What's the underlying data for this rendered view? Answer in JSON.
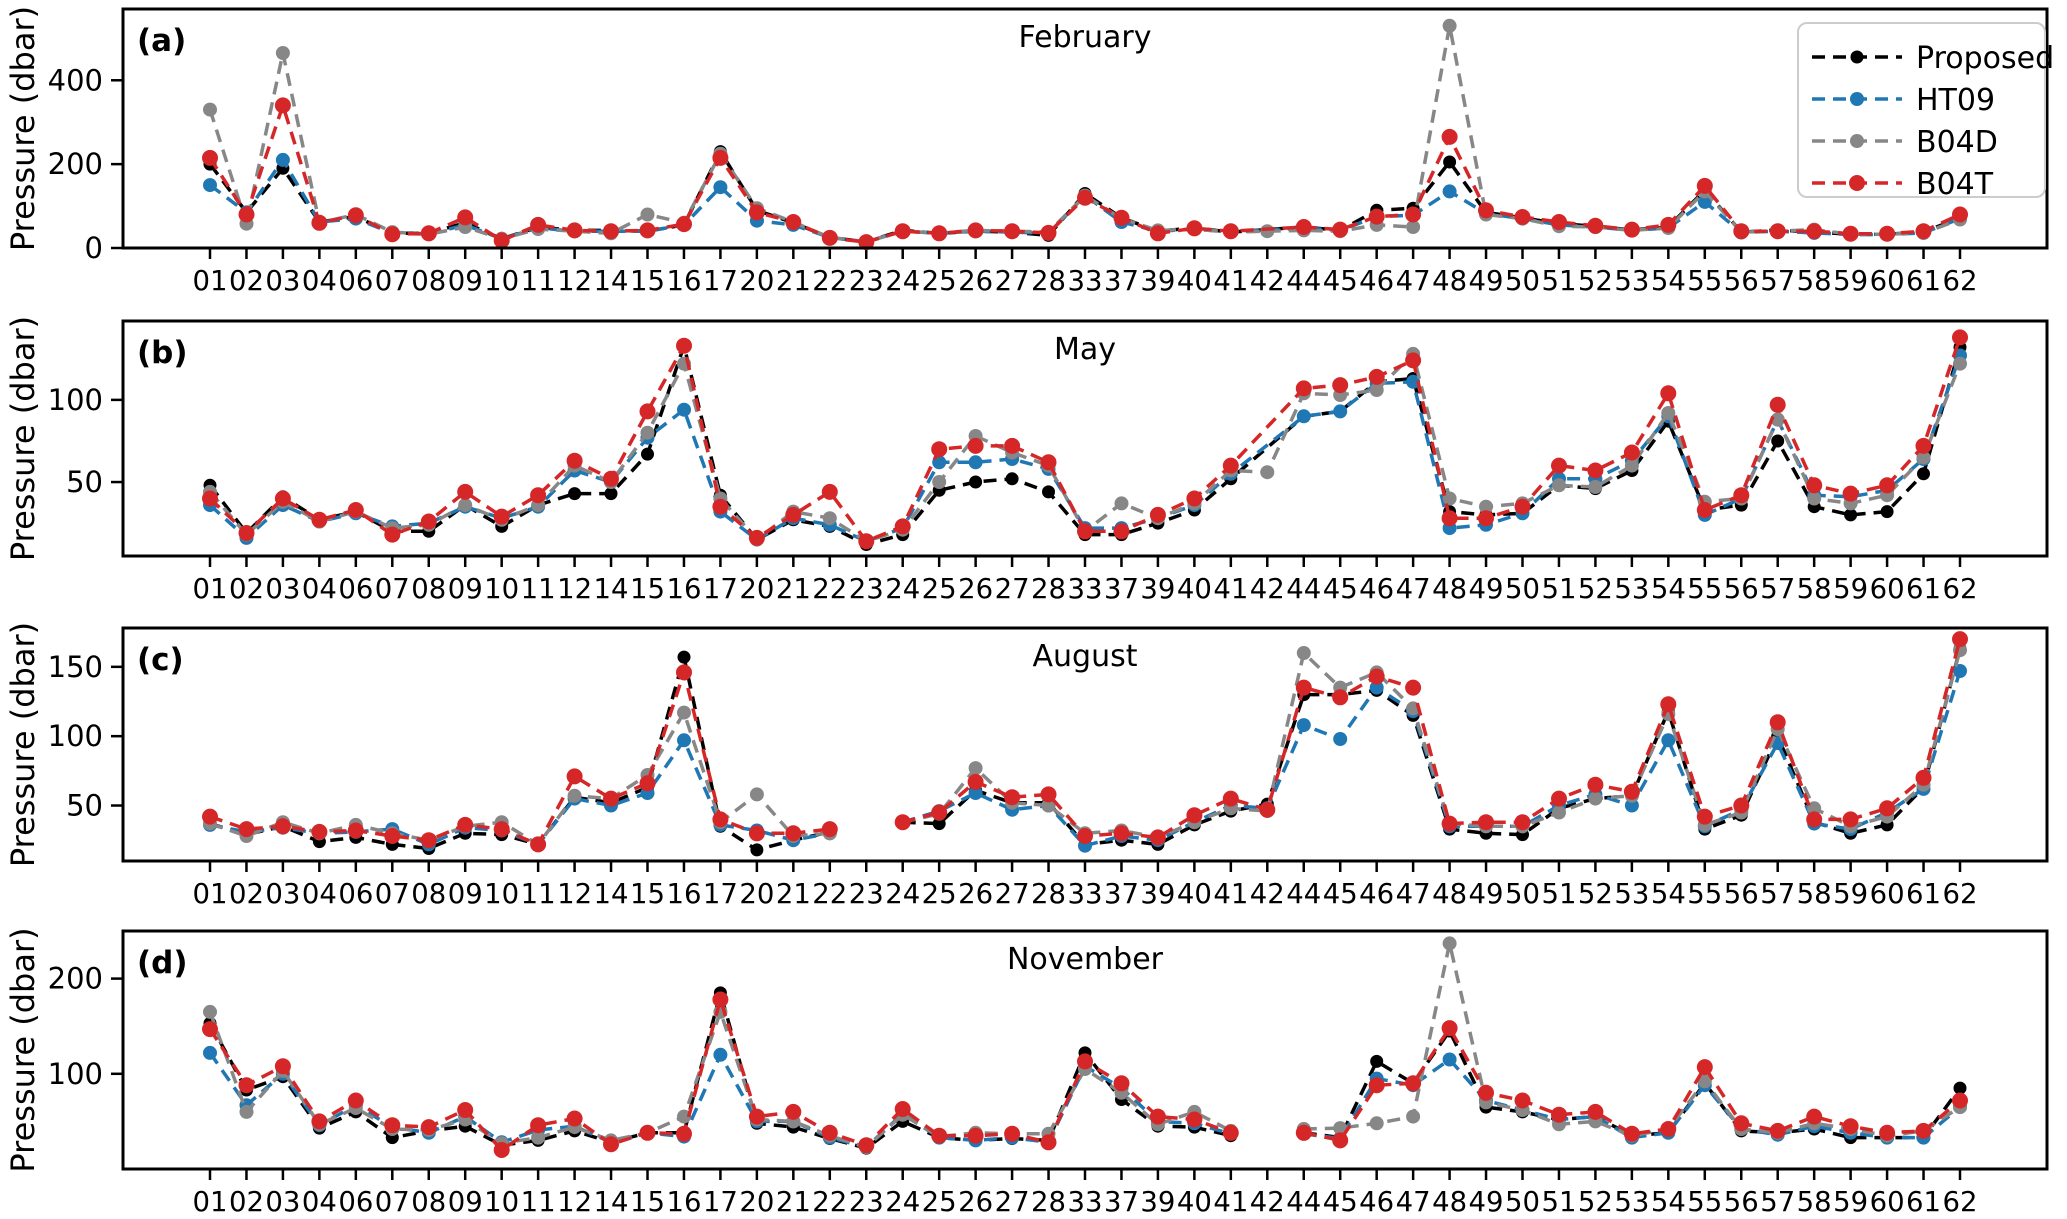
{
  "figure": {
    "ylabel": "Pressure (dbar)"
  },
  "colors": {
    "proposed": "#000000",
    "ht09": "#1f77b4",
    "b04d": "#878787",
    "b04t": "#d62728",
    "axis": "#000000",
    "legend_border": "#cccccc"
  },
  "legend": {
    "entries": [
      "Proposed",
      "HT09",
      "B04D",
      "B04T"
    ]
  },
  "stations": [
    "01",
    "02",
    "03",
    "04",
    "06",
    "07",
    "08",
    "09",
    "10",
    "11",
    "12",
    "14",
    "15",
    "16",
    "17",
    "20",
    "21",
    "22",
    "23",
    "24",
    "25",
    "26",
    "27",
    "28",
    "33",
    "37",
    "39",
    "40",
    "41",
    "42",
    "44",
    "45",
    "46",
    "47",
    "48",
    "49",
    "50",
    "51",
    "52",
    "53",
    "54",
    "55",
    "56",
    "57",
    "58",
    "59",
    "60",
    "61",
    "62"
  ],
  "chart_data": [
    {
      "type": "line",
      "panel_tag": "(a)",
      "title": "February",
      "ylabel": "Pressure (dbar)",
      "ylim": [
        0,
        570
      ],
      "yticks": [
        0,
        200,
        400
      ],
      "grid": false,
      "legend_position": "upper right",
      "line_break_at": [],
      "series": [
        {
          "name": "Proposed",
          "color": "#000000",
          "values": [
            200,
            85,
            190,
            62,
            75,
            35,
            35,
            60,
            22,
            50,
            42,
            42,
            40,
            55,
            230,
            90,
            60,
            25,
            15,
            42,
            35,
            40,
            38,
            30,
            130,
            72,
            40,
            48,
            38,
            null,
            50,
            42,
            90,
            95,
            205,
            85,
            72,
            58,
            52,
            43,
            50,
            138,
            38,
            43,
            38,
            33,
            33,
            38,
            72
          ]
        },
        {
          "name": "HT09",
          "color": "#1f77b4",
          "values": [
            150,
            85,
            210,
            62,
            70,
            35,
            33,
            55,
            22,
            48,
            40,
            40,
            40,
            55,
            145,
            65,
            55,
            25,
            15,
            40,
            35,
            40,
            38,
            35,
            125,
            62,
            40,
            45,
            38,
            null,
            48,
            42,
            75,
            78,
            135,
            82,
            70,
            55,
            50,
            42,
            48,
            110,
            37,
            40,
            36,
            32,
            32,
            36,
            70
          ]
        },
        {
          "name": "B04D",
          "color": "#878787",
          "values": [
            330,
            58,
            465,
            60,
            80,
            38,
            33,
            50,
            22,
            45,
            40,
            35,
            80,
            60,
            225,
            95,
            62,
            25,
            15,
            40,
            36,
            42,
            40,
            38,
            125,
            70,
            42,
            45,
            38,
            40,
            42,
            40,
            55,
            50,
            530,
            80,
            70,
            52,
            50,
            42,
            48,
            135,
            38,
            40,
            44,
            33,
            33,
            36,
            68
          ]
        },
        {
          "name": "B04T",
          "color": "#d62728",
          "values": [
            215,
            80,
            340,
            60,
            78,
            33,
            35,
            73,
            18,
            55,
            42,
            40,
            42,
            57,
            215,
            85,
            62,
            24,
            14,
            40,
            35,
            42,
            40,
            36,
            120,
            72,
            35,
            47,
            40,
            null,
            50,
            44,
            75,
            80,
            265,
            90,
            74,
            62,
            53,
            44,
            55,
            148,
            40,
            40,
            40,
            34,
            34,
            40,
            80
          ]
        }
      ]
    },
    {
      "type": "line",
      "panel_tag": "(b)",
      "title": "May",
      "ylabel": "Pressure (dbar)",
      "ylim": [
        5,
        148
      ],
      "yticks": [
        50,
        100
      ],
      "grid": false,
      "legend_position": "none",
      "line_break_at": [],
      "series": [
        {
          "name": "Proposed",
          "color": "#000000",
          "values": [
            48,
            19,
            41,
            27,
            32,
            20,
            20,
            36,
            23,
            36,
            43,
            43,
            67,
            133,
            42,
            15,
            27,
            23,
            12,
            18,
            45,
            50,
            52,
            44,
            18,
            18,
            25,
            33,
            52,
            null,
            90,
            93,
            111,
            113,
            32,
            30,
            31,
            48,
            46,
            57,
            87,
            33,
            36,
            75,
            35,
            30,
            32,
            55,
            132
          ]
        },
        {
          "name": "HT09",
          "color": "#1f77b4",
          "values": [
            36,
            16,
            36,
            26,
            31,
            23,
            25,
            35,
            28,
            35,
            57,
            50,
            77,
            94,
            32,
            15,
            28,
            24,
            14,
            22,
            62,
            62,
            64,
            58,
            22,
            22,
            28,
            36,
            55,
            null,
            90,
            93,
            110,
            111,
            22,
            24,
            31,
            52,
            52,
            63,
            90,
            30,
            40,
            88,
            42,
            41,
            45,
            64,
            127
          ]
        },
        {
          "name": "B04D",
          "color": "#878787",
          "values": [
            44,
            18,
            38,
            26,
            32,
            22,
            24,
            36,
            27,
            36,
            60,
            50,
            80,
            122,
            40,
            15,
            32,
            28,
            14,
            21,
            50,
            78,
            68,
            60,
            20,
            37,
            28,
            37,
            57,
            56,
            104,
            103,
            106,
            128,
            40,
            35,
            37,
            48,
            47,
            60,
            92,
            38,
            40,
            88,
            40,
            37,
            42,
            65,
            122
          ]
        },
        {
          "name": "B04T",
          "color": "#d62728",
          "values": [
            40,
            19,
            40,
            27,
            33,
            18,
            26,
            44,
            29,
            42,
            63,
            52,
            93,
            133,
            35,
            16,
            30,
            44,
            14,
            23,
            70,
            72,
            72,
            62,
            20,
            20,
            30,
            40,
            60,
            null,
            107,
            109,
            114,
            124,
            28,
            28,
            35,
            60,
            57,
            68,
            104,
            33,
            42,
            97,
            48,
            43,
            48,
            72,
            138
          ]
        }
      ]
    },
    {
      "type": "line",
      "panel_tag": "(c)",
      "title": "August",
      "ylabel": "Pressure (dbar)",
      "ylim": [
        10,
        178
      ],
      "yticks": [
        50,
        100,
        150
      ],
      "grid": false,
      "legend_position": "none",
      "line_break_at": [
        "23"
      ],
      "series": [
        {
          "name": "Proposed",
          "color": "#000000",
          "values": [
            37,
            29,
            35,
            24,
            27,
            22,
            19,
            30,
            29,
            22,
            56,
            52,
            63,
            157,
            35,
            18,
            25,
            31,
            null,
            38,
            37,
            61,
            52,
            52,
            22,
            25,
            22,
            36,
            46,
            51,
            130,
            130,
            133,
            115,
            33,
            30,
            29,
            48,
            55,
            57,
            118,
            33,
            43,
            100,
            38,
            30,
            36,
            63,
            163
          ]
        },
        {
          "name": "HT09",
          "color": "#1f77b4",
          "values": [
            36,
            31,
            34,
            30,
            31,
            33,
            22,
            34,
            32,
            22,
            55,
            50,
            59,
            97,
            36,
            32,
            25,
            30,
            null,
            38,
            46,
            59,
            47,
            50,
            21,
            28,
            25,
            38,
            50,
            48,
            108,
            98,
            135,
            118,
            35,
            35,
            35,
            50,
            58,
            50,
            97,
            35,
            47,
            95,
            37,
            33,
            45,
            62,
            147
          ]
        },
        {
          "name": "B04D",
          "color": "#878787",
          "values": [
            37,
            28,
            38,
            30,
            36,
            30,
            25,
            35,
            38,
            22,
            57,
            55,
            72,
            117,
            38,
            58,
            28,
            30,
            null,
            38,
            44,
            77,
            52,
            50,
            30,
            32,
            27,
            38,
            48,
            46,
            160,
            135,
            146,
            120,
            37,
            35,
            35,
            45,
            55,
            57,
            116,
            36,
            45,
            105,
            48,
            35,
            42,
            65,
            162
          ]
        },
        {
          "name": "B04T",
          "color": "#d62728",
          "values": [
            42,
            33,
            35,
            31,
            32,
            28,
            25,
            36,
            33,
            22,
            71,
            55,
            66,
            146,
            40,
            30,
            30,
            33,
            null,
            38,
            45,
            67,
            56,
            58,
            28,
            30,
            27,
            43,
            55,
            47,
            135,
            128,
            143,
            135,
            37,
            38,
            38,
            55,
            65,
            60,
            123,
            42,
            50,
            110,
            40,
            40,
            48,
            70,
            170
          ]
        }
      ]
    },
    {
      "type": "line",
      "panel_tag": "(d)",
      "title": "November",
      "ylabel": "Pressure (dbar)",
      "ylim": [
        0,
        250
      ],
      "yticks": [
        100,
        200
      ],
      "grid": false,
      "legend_position": "none",
      "line_break_at": [
        "42"
      ],
      "series": [
        {
          "name": "Proposed",
          "color": "#000000",
          "values": [
            153,
            83,
            97,
            43,
            60,
            33,
            40,
            45,
            25,
            30,
            40,
            28,
            38,
            38,
            185,
            48,
            44,
            32,
            22,
            50,
            33,
            30,
            32,
            30,
            122,
            73,
            45,
            44,
            35,
            null,
            38,
            33,
            113,
            90,
            145,
            65,
            60,
            52,
            55,
            35,
            38,
            90,
            40,
            38,
            42,
            33,
            33,
            33,
            85
          ]
        },
        {
          "name": "HT09",
          "color": "#1f77b4",
          "values": [
            122,
            67,
            100,
            46,
            67,
            44,
            38,
            55,
            28,
            41,
            45,
            28,
            38,
            34,
            120,
            50,
            50,
            33,
            23,
            58,
            33,
            30,
            33,
            28,
            108,
            85,
            50,
            48,
            37,
            null,
            37,
            32,
            95,
            88,
            115,
            72,
            62,
            52,
            55,
            33,
            38,
            88,
            42,
            36,
            45,
            38,
            33,
            33,
            65
          ]
        },
        {
          "name": "B04D",
          "color": "#878787",
          "values": [
            165,
            60,
            103,
            47,
            64,
            42,
            41,
            52,
            27,
            33,
            44,
            30,
            38,
            55,
            165,
            52,
            50,
            35,
            23,
            57,
            34,
            38,
            37,
            37,
            105,
            80,
            47,
            60,
            40,
            null,
            42,
            43,
            48,
            55,
            237,
            70,
            62,
            47,
            50,
            35,
            42,
            92,
            42,
            38,
            48,
            42,
            35,
            40,
            65
          ]
        },
        {
          "name": "B04T",
          "color": "#d62728",
          "values": [
            147,
            88,
            108,
            50,
            72,
            46,
            44,
            62,
            20,
            46,
            53,
            26,
            38,
            37,
            178,
            55,
            60,
            38,
            25,
            63,
            35,
            35,
            37,
            28,
            113,
            90,
            55,
            52,
            38,
            null,
            38,
            30,
            88,
            90,
            148,
            80,
            72,
            57,
            60,
            37,
            42,
            107,
            48,
            40,
            55,
            45,
            38,
            40,
            72
          ]
        }
      ]
    }
  ]
}
